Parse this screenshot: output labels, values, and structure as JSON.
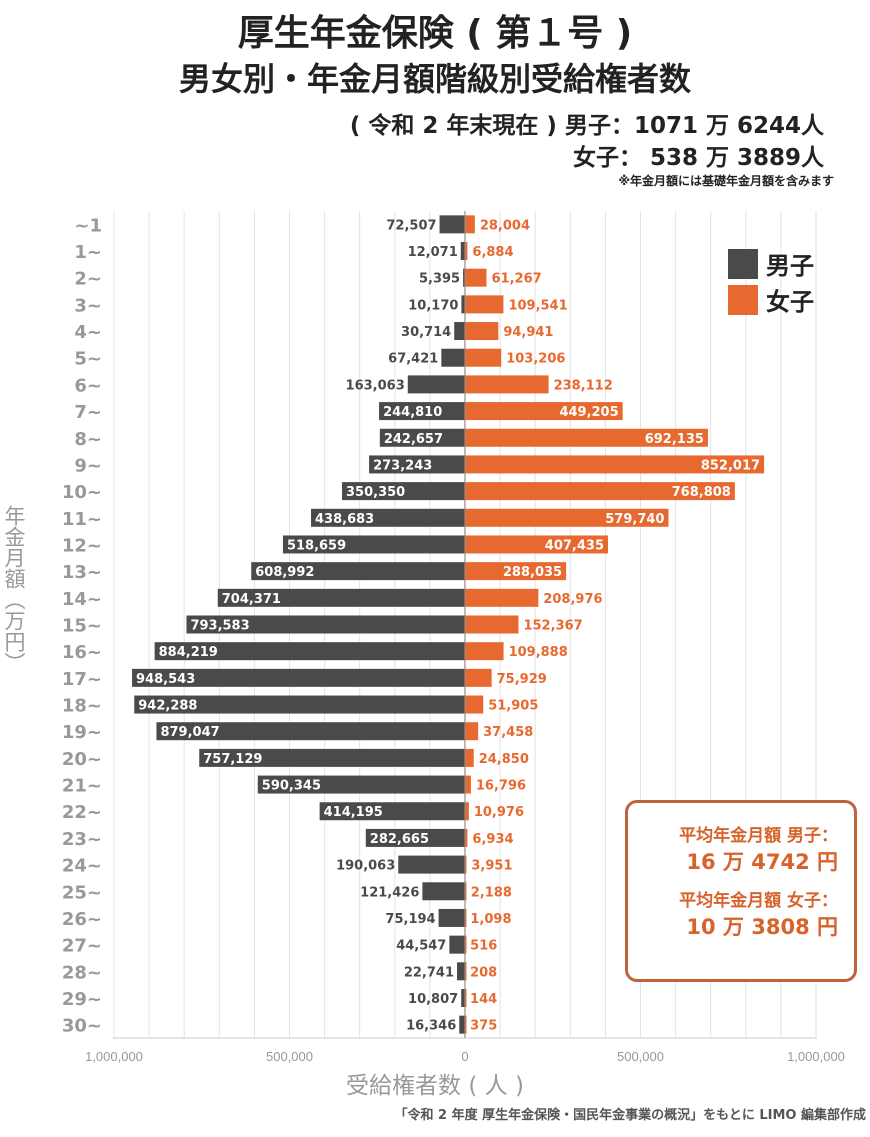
{
  "title": {
    "line1": "厚生年金保険 ( 第１号 )",
    "line2": "男女別・年金月額階級別受給権者数",
    "line3": "( 令和 2 年末現在 ) 男子：1071 万 6244人",
    "line4": "女子：  538 万 3889人",
    "note": "※年金月額には基礎年金月額を含みます"
  },
  "summary": {
    "male_label": "平均年金月額  男子：",
    "male_value": "16 万 4742 円",
    "female_label": "平均年金月額  女子：",
    "female_value": "10 万 3808 円"
  },
  "source": "「令和 2 年度 厚生年金保険・国民年金事業の概況」をもとに LIMO 編集部作成",
  "colors": {
    "male": "#4a4a4a",
    "female": "#e8692f",
    "grid": "#e3e3e3",
    "axis_text": "#999999"
  },
  "chart_data": {
    "type": "bar",
    "orientation": "horizontal-diverging",
    "ylabel": "年金月額（万円）",
    "xlabel": "受給権者数 ( 人 )",
    "xlim": [
      -1000000,
      1000000
    ],
    "x_tick_labels": [
      "1,000,000",
      "500,000",
      "0",
      "500,000",
      "1,000,000"
    ],
    "grid": true,
    "legend_position": "top-right",
    "categories": [
      "~1",
      "1~",
      "2~",
      "3~",
      "4~",
      "5~",
      "6~",
      "7~",
      "8~",
      "9~",
      "10~",
      "11~",
      "12~",
      "13~",
      "14~",
      "15~",
      "16~",
      "17~",
      "18~",
      "19~",
      "20~",
      "21~",
      "22~",
      "23~",
      "24~",
      "25~",
      "26~",
      "27~",
      "28~",
      "29~",
      "30~"
    ],
    "series": [
      {
        "name": "男子",
        "side": "left",
        "values": [
          72507,
          12071,
          5395,
          10170,
          30714,
          67421,
          163063,
          244810,
          242657,
          273243,
          350350,
          438683,
          518659,
          608992,
          704371,
          793583,
          884219,
          948543,
          942288,
          879047,
          757129,
          590345,
          414195,
          282665,
          190063,
          121426,
          75194,
          44547,
          22741,
          10807,
          16346
        ]
      },
      {
        "name": "女子",
        "side": "right",
        "values": [
          28004,
          6884,
          61267,
          109541,
          94941,
          103206,
          238112,
          449205,
          692135,
          852017,
          768808,
          579740,
          407435,
          288035,
          208976,
          152367,
          109888,
          75929,
          51905,
          37458,
          24850,
          16796,
          10976,
          6934,
          3951,
          2188,
          1098,
          516,
          208,
          144,
          375
        ]
      }
    ]
  }
}
